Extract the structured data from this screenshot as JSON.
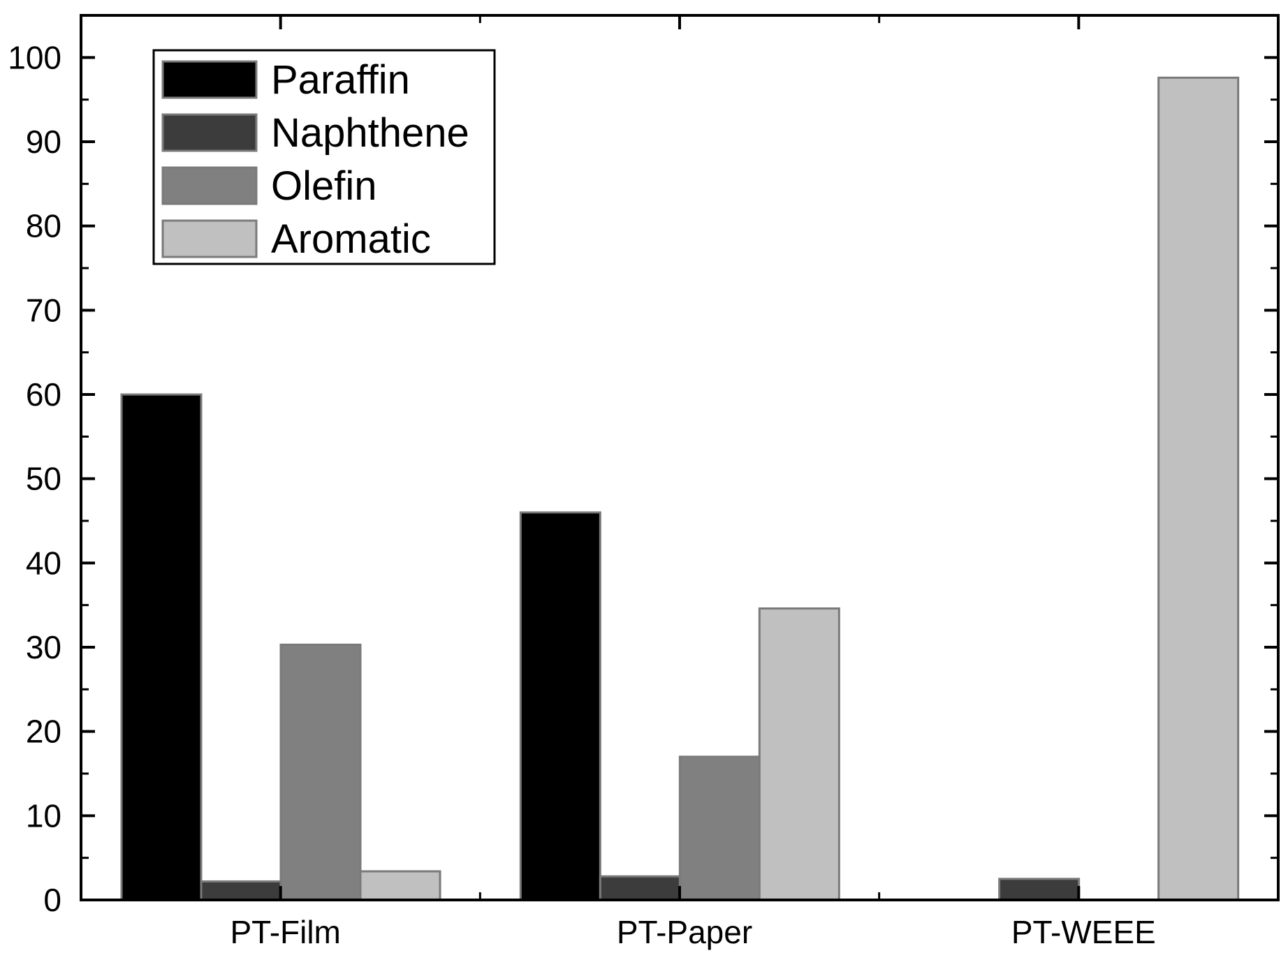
{
  "chart_data": {
    "type": "bar",
    "title": "",
    "xlabel": "",
    "ylabel": "",
    "categories": [
      "PT-Film",
      "PT-Paper",
      "PT-WEEE"
    ],
    "ylim": [
      0,
      105
    ],
    "yticks": [
      0,
      10,
      20,
      30,
      40,
      50,
      60,
      70,
      80,
      90,
      100
    ],
    "grid": false,
    "legend_position": "top-left",
    "series": [
      {
        "name": "Paraffin",
        "color": "#000000",
        "values": [
          60,
          46,
          0
        ]
      },
      {
        "name": "Naphthene",
        "color": "#3c3c3c",
        "values": [
          2.2,
          2.8,
          2.5
        ]
      },
      {
        "name": "Olefin",
        "color": "#808080",
        "values": [
          30.3,
          17,
          0
        ]
      },
      {
        "name": "Aromatic",
        "color": "#c0c0c0",
        "values": [
          3.4,
          34.6,
          97.6
        ]
      }
    ]
  }
}
